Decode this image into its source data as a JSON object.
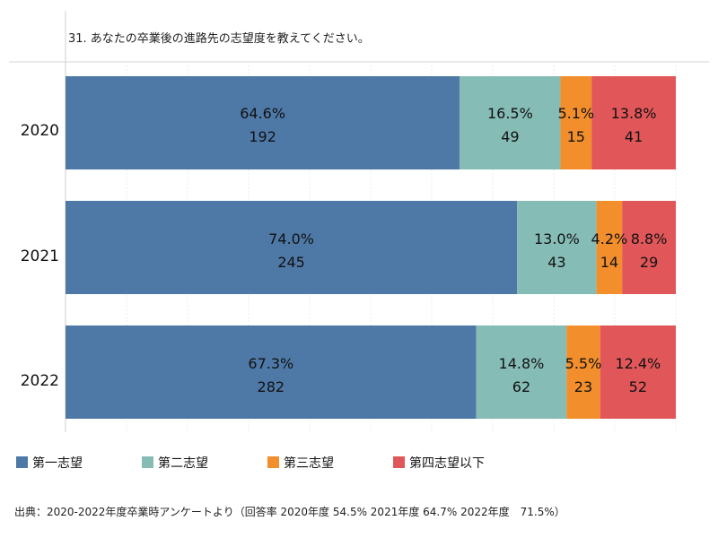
{
  "chart_data": {
    "type": "bar",
    "orientation": "horizontal",
    "stacked": true,
    "percent_stacked": true,
    "title": "31. あなたの卒業後の進路先の志望度を教えてください。",
    "categories": [
      "2020",
      "2021",
      "2022"
    ],
    "series": [
      {
        "name": "第一志望",
        "color": "#4e79a7",
        "percent_labels": [
          "64.6%",
          "74.0%",
          "67.3%"
        ],
        "percent": [
          64.6,
          74.0,
          67.3
        ],
        "counts": [
          192,
          245,
          282
        ]
      },
      {
        "name": "第二志望",
        "color": "#86bcb6",
        "percent_labels": [
          "16.5%",
          "13.0%",
          "14.8%"
        ],
        "percent": [
          16.5,
          13.0,
          14.8
        ],
        "counts": [
          49,
          43,
          62
        ]
      },
      {
        "name": "第三志望",
        "color": "#f28e2b",
        "percent_labels": [
          "5.1%",
          "4.2%",
          "5.5%"
        ],
        "percent": [
          5.1,
          4.2,
          5.5
        ],
        "counts": [
          15,
          14,
          23
        ]
      },
      {
        "name": "第四志望以下",
        "color": "#e15759",
        "percent_labels": [
          "13.8%",
          "8.8%",
          "12.4%"
        ],
        "percent": [
          13.8,
          8.8,
          12.4
        ],
        "counts": [
          41,
          29,
          52
        ]
      }
    ],
    "legend_position": "bottom-left",
    "grid": true
  },
  "footnote": "出典：2020-2022年度卒業時アンケートより（回答率 2020年度 54.5% 2021年度 64.7% 2022年度　71.5%）"
}
